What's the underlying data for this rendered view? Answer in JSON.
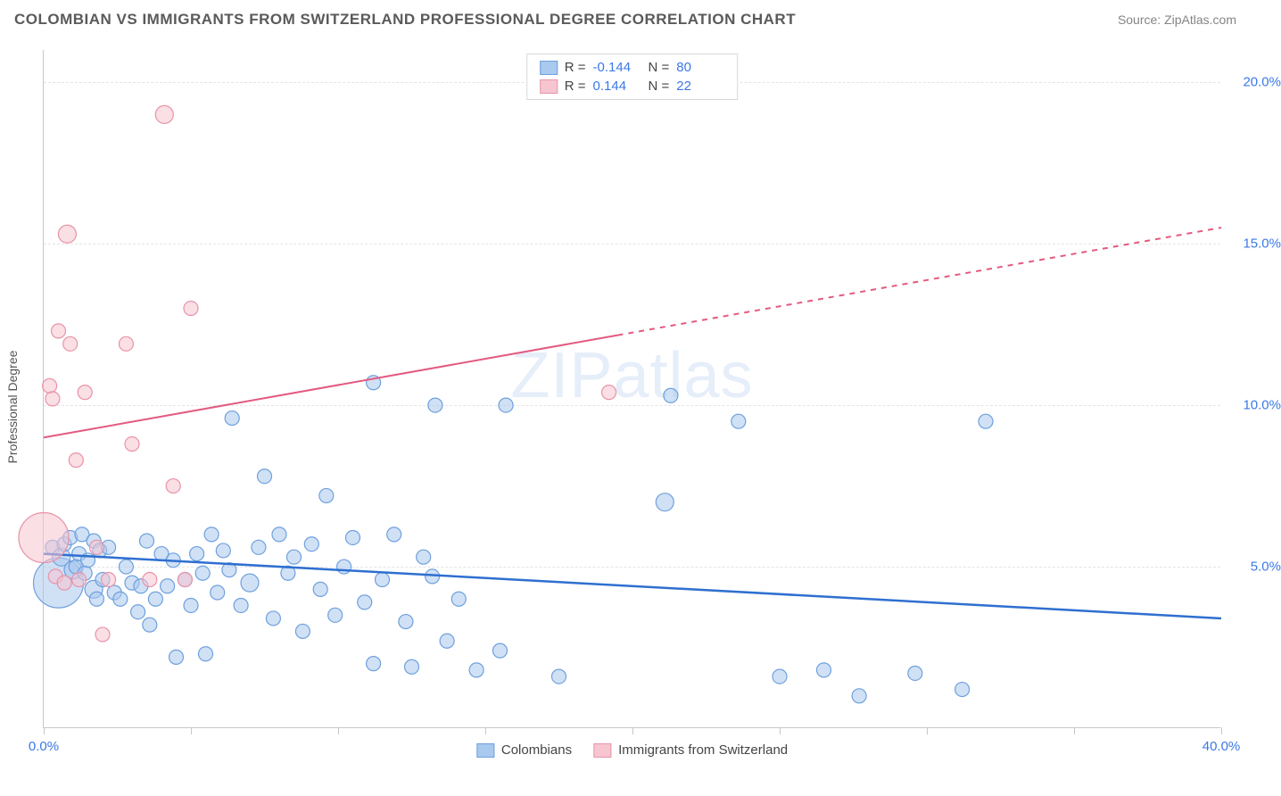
{
  "header": {
    "title": "COLOMBIAN VS IMMIGRANTS FROM SWITZERLAND PROFESSIONAL DEGREE CORRELATION CHART",
    "source": "Source: ZipAtlas.com"
  },
  "chart": {
    "type": "scatter",
    "ylabel": "Professional Degree",
    "watermark": "ZIPatlas",
    "background_color": "#ffffff",
    "grid_color": "#e4e4e4",
    "axis_color": "#c7c7c7",
    "tick_label_color": "#3b78e7",
    "ylabel_color": "#555555",
    "title_color": "#5a5a5a",
    "xlim": [
      0,
      40
    ],
    "ylim": [
      0,
      21
    ],
    "yticks": [
      {
        "v": 5.0,
        "label": "5.0%"
      },
      {
        "v": 10.0,
        "label": "10.0%"
      },
      {
        "v": 15.0,
        "label": "15.0%"
      },
      {
        "v": 20.0,
        "label": "20.0%"
      }
    ],
    "xticks_minor": [
      0,
      5,
      10,
      15,
      20,
      25,
      30,
      35,
      40
    ],
    "xtick_labels": [
      {
        "v": 0,
        "label": "0.0%"
      },
      {
        "v": 40,
        "label": "40.0%"
      }
    ],
    "series": [
      {
        "name": "Colombians",
        "fill_color": "#a9c9ef",
        "stroke_color": "#6ea0dd",
        "fill_opacity": 0.55,
        "line_color": "#2f6fd0",
        "line_width": 2.5,
        "R_label": "-0.144",
        "N_label": "80",
        "regression": {
          "x1": 0,
          "y1": 5.4,
          "x2": 40,
          "y2": 3.4,
          "solid_end_x": 40
        },
        "points": [
          {
            "x": 0.3,
            "y": 5.6,
            "r": 8
          },
          {
            "x": 0.5,
            "y": 4.5,
            "r": 28
          },
          {
            "x": 0.6,
            "y": 5.3,
            "r": 10
          },
          {
            "x": 0.7,
            "y": 5.7,
            "r": 8
          },
          {
            "x": 0.9,
            "y": 5.9,
            "r": 8
          },
          {
            "x": 1.0,
            "y": 4.9,
            "r": 10
          },
          {
            "x": 1.1,
            "y": 5.0,
            "r": 8
          },
          {
            "x": 1.2,
            "y": 5.4,
            "r": 8
          },
          {
            "x": 1.3,
            "y": 6.0,
            "r": 8
          },
          {
            "x": 1.4,
            "y": 4.8,
            "r": 8
          },
          {
            "x": 1.5,
            "y": 5.2,
            "r": 8
          },
          {
            "x": 1.7,
            "y": 5.8,
            "r": 8
          },
          {
            "x": 1.7,
            "y": 4.3,
            "r": 10
          },
          {
            "x": 1.8,
            "y": 4.0,
            "r": 8
          },
          {
            "x": 1.9,
            "y": 5.5,
            "r": 8
          },
          {
            "x": 2.0,
            "y": 4.6,
            "r": 8
          },
          {
            "x": 2.2,
            "y": 5.6,
            "r": 8
          },
          {
            "x": 2.4,
            "y": 4.2,
            "r": 8
          },
          {
            "x": 2.6,
            "y": 4.0,
            "r": 8
          },
          {
            "x": 2.8,
            "y": 5.0,
            "r": 8
          },
          {
            "x": 3.0,
            "y": 4.5,
            "r": 8
          },
          {
            "x": 3.2,
            "y": 3.6,
            "r": 8
          },
          {
            "x": 3.3,
            "y": 4.4,
            "r": 8
          },
          {
            "x": 3.5,
            "y": 5.8,
            "r": 8
          },
          {
            "x": 3.6,
            "y": 3.2,
            "r": 8
          },
          {
            "x": 3.8,
            "y": 4.0,
            "r": 8
          },
          {
            "x": 4.0,
            "y": 5.4,
            "r": 8
          },
          {
            "x": 4.2,
            "y": 4.4,
            "r": 8
          },
          {
            "x": 4.4,
            "y": 5.2,
            "r": 8
          },
          {
            "x": 4.5,
            "y": 2.2,
            "r": 8
          },
          {
            "x": 4.8,
            "y": 4.6,
            "r": 8
          },
          {
            "x": 5.0,
            "y": 3.8,
            "r": 8
          },
          {
            "x": 5.2,
            "y": 5.4,
            "r": 8
          },
          {
            "x": 5.4,
            "y": 4.8,
            "r": 8
          },
          {
            "x": 5.5,
            "y": 2.3,
            "r": 8
          },
          {
            "x": 5.7,
            "y": 6.0,
            "r": 8
          },
          {
            "x": 5.9,
            "y": 4.2,
            "r": 8
          },
          {
            "x": 6.1,
            "y": 5.5,
            "r": 8
          },
          {
            "x": 6.3,
            "y": 4.9,
            "r": 8
          },
          {
            "x": 6.4,
            "y": 9.6,
            "r": 8
          },
          {
            "x": 6.7,
            "y": 3.8,
            "r": 8
          },
          {
            "x": 7.0,
            "y": 4.5,
            "r": 10
          },
          {
            "x": 7.3,
            "y": 5.6,
            "r": 8
          },
          {
            "x": 7.5,
            "y": 7.8,
            "r": 8
          },
          {
            "x": 7.8,
            "y": 3.4,
            "r": 8
          },
          {
            "x": 8.0,
            "y": 6.0,
            "r": 8
          },
          {
            "x": 8.3,
            "y": 4.8,
            "r": 8
          },
          {
            "x": 8.5,
            "y": 5.3,
            "r": 8
          },
          {
            "x": 8.8,
            "y": 3.0,
            "r": 8
          },
          {
            "x": 9.1,
            "y": 5.7,
            "r": 8
          },
          {
            "x": 9.4,
            "y": 4.3,
            "r": 8
          },
          {
            "x": 9.6,
            "y": 7.2,
            "r": 8
          },
          {
            "x": 9.9,
            "y": 3.5,
            "r": 8
          },
          {
            "x": 10.2,
            "y": 5.0,
            "r": 8
          },
          {
            "x": 10.5,
            "y": 5.9,
            "r": 8
          },
          {
            "x": 10.9,
            "y": 3.9,
            "r": 8
          },
          {
            "x": 11.2,
            "y": 10.7,
            "r": 8
          },
          {
            "x": 11.2,
            "y": 2.0,
            "r": 8
          },
          {
            "x": 11.5,
            "y": 4.6,
            "r": 8
          },
          {
            "x": 11.9,
            "y": 6.0,
            "r": 8
          },
          {
            "x": 12.3,
            "y": 3.3,
            "r": 8
          },
          {
            "x": 12.5,
            "y": 1.9,
            "r": 8
          },
          {
            "x": 12.9,
            "y": 5.3,
            "r": 8
          },
          {
            "x": 13.2,
            "y": 4.7,
            "r": 8
          },
          {
            "x": 13.3,
            "y": 10.0,
            "r": 8
          },
          {
            "x": 13.7,
            "y": 2.7,
            "r": 8
          },
          {
            "x": 14.1,
            "y": 4.0,
            "r": 8
          },
          {
            "x": 14.7,
            "y": 1.8,
            "r": 8
          },
          {
            "x": 15.5,
            "y": 2.4,
            "r": 8
          },
          {
            "x": 15.7,
            "y": 10.0,
            "r": 8
          },
          {
            "x": 17.5,
            "y": 1.6,
            "r": 8
          },
          {
            "x": 21.1,
            "y": 7.0,
            "r": 10
          },
          {
            "x": 21.3,
            "y": 10.3,
            "r": 8
          },
          {
            "x": 23.6,
            "y": 9.5,
            "r": 8
          },
          {
            "x": 25.0,
            "y": 1.6,
            "r": 8
          },
          {
            "x": 26.5,
            "y": 1.8,
            "r": 8
          },
          {
            "x": 27.7,
            "y": 1.0,
            "r": 8
          },
          {
            "x": 29.6,
            "y": 1.7,
            "r": 8
          },
          {
            "x": 31.2,
            "y": 1.2,
            "r": 8
          },
          {
            "x": 32.0,
            "y": 9.5,
            "r": 8
          }
        ]
      },
      {
        "name": "Immigrants from Switzerland",
        "fill_color": "#f6c5d0",
        "stroke_color": "#e893a8",
        "fill_opacity": 0.55,
        "line_color": "#e35a7f",
        "line_width": 2.0,
        "R_label": "0.144",
        "N_label": "22",
        "regression": {
          "x1": 0,
          "y1": 9.0,
          "x2": 40,
          "y2": 15.5,
          "solid_end_x": 19.5
        },
        "points": [
          {
            "x": 0.0,
            "y": 5.9,
            "r": 28
          },
          {
            "x": 0.2,
            "y": 10.6,
            "r": 8
          },
          {
            "x": 0.3,
            "y": 10.2,
            "r": 8
          },
          {
            "x": 0.4,
            "y": 4.7,
            "r": 8
          },
          {
            "x": 0.5,
            "y": 12.3,
            "r": 8
          },
          {
            "x": 0.7,
            "y": 4.5,
            "r": 8
          },
          {
            "x": 0.8,
            "y": 15.3,
            "r": 10
          },
          {
            "x": 0.9,
            "y": 11.9,
            "r": 8
          },
          {
            "x": 1.1,
            "y": 8.3,
            "r": 8
          },
          {
            "x": 1.2,
            "y": 4.6,
            "r": 8
          },
          {
            "x": 1.4,
            "y": 10.4,
            "r": 8
          },
          {
            "x": 1.8,
            "y": 5.6,
            "r": 8
          },
          {
            "x": 2.0,
            "y": 2.9,
            "r": 8
          },
          {
            "x": 2.2,
            "y": 4.6,
            "r": 8
          },
          {
            "x": 2.8,
            "y": 11.9,
            "r": 8
          },
          {
            "x": 3.0,
            "y": 8.8,
            "r": 8
          },
          {
            "x": 3.6,
            "y": 4.6,
            "r": 8
          },
          {
            "x": 4.1,
            "y": 19.0,
            "r": 10
          },
          {
            "x": 4.4,
            "y": 7.5,
            "r": 8
          },
          {
            "x": 4.8,
            "y": 4.6,
            "r": 8
          },
          {
            "x": 5.0,
            "y": 13.0,
            "r": 8
          },
          {
            "x": 19.2,
            "y": 10.4,
            "r": 8
          }
        ]
      }
    ],
    "legend_top": {
      "border_color": "#d8d8d8",
      "R_prefix": "R =",
      "N_prefix": "N ="
    },
    "legend_bottom": [
      {
        "label": "Colombians",
        "fill": "#a9c9ef",
        "stroke": "#6ea0dd"
      },
      {
        "label": "Immigrants from Switzerland",
        "fill": "#f6c5d0",
        "stroke": "#e893a8"
      }
    ]
  }
}
